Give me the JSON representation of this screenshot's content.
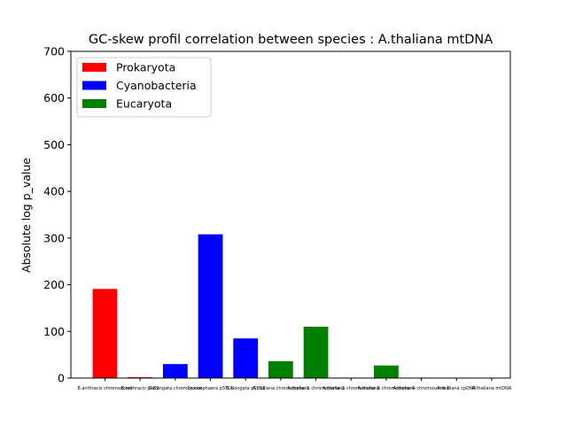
{
  "chart_data": {
    "type": "bar",
    "title": "GC-skew profil correlation between species : A.thaliana mtDNA",
    "xlabel": "",
    "ylabel": "Absolute log p_value",
    "ylim": [
      0,
      700
    ],
    "yticks": [
      0,
      100,
      200,
      300,
      400,
      500,
      600,
      700
    ],
    "grid": false,
    "legend_position": "top-left",
    "legend": [
      {
        "label": "Prokaryota",
        "color": "#ff0000"
      },
      {
        "label": "Cyanobacteria",
        "color": "#0000ff"
      },
      {
        "label": "Eucaryota",
        "color": "#008000"
      }
    ],
    "categories": [
      "B.anthracis chromosome",
      "B.anthracis pXO1",
      "S.elongata chromosome",
      "Crocosphaera pSYC1",
      "S.elongata pSC11",
      "A.thaliana chromosome 1",
      "A.thaliana chromosome 2",
      "A.thaliana chromosome 3",
      "A.thaliana chromosome 4",
      "A.thaliana chromosome 5",
      "A.thaliana cpDNA",
      "A.thaliana mtDNA"
    ],
    "values": [
      191,
      2,
      30,
      308,
      85,
      36,
      110,
      1,
      27,
      0.5,
      0.5,
      0.5
    ],
    "colors": [
      "#ff0000",
      "#ff0000",
      "#0000ff",
      "#0000ff",
      "#0000ff",
      "#008000",
      "#008000",
      "#008000",
      "#008000",
      "#008000",
      "#008000",
      "#008000"
    ]
  }
}
